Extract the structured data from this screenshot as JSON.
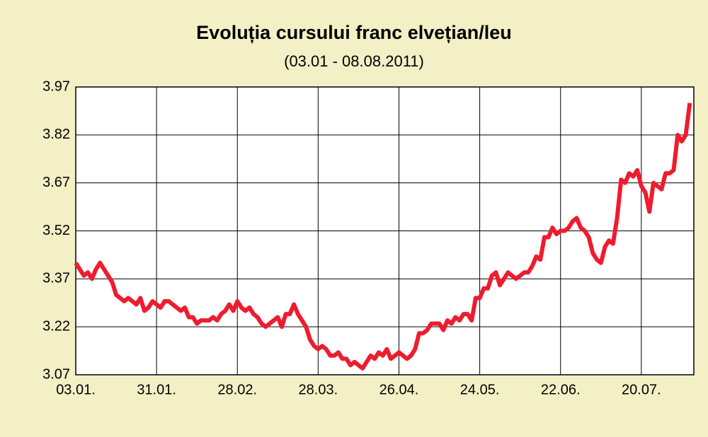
{
  "chart_data": {
    "type": "line",
    "title": "Evoluția cursului franc elvețian/leu",
    "subtitle": "(03.01 - 08.08.2011)",
    "categories": [
      "03.01.",
      null,
      null,
      null,
      null,
      null,
      null,
      null,
      null,
      null,
      null,
      null,
      null,
      null,
      null,
      null,
      null,
      null,
      null,
      null,
      "31.01.",
      null,
      null,
      null,
      null,
      null,
      null,
      null,
      null,
      null,
      null,
      null,
      null,
      null,
      null,
      null,
      null,
      null,
      null,
      null,
      "28.02.",
      null,
      null,
      null,
      null,
      null,
      null,
      null,
      null,
      null,
      null,
      null,
      null,
      null,
      null,
      null,
      null,
      null,
      null,
      null,
      "28.03.",
      null,
      null,
      null,
      null,
      null,
      null,
      null,
      null,
      null,
      null,
      null,
      null,
      null,
      null,
      null,
      null,
      null,
      null,
      null,
      "26.04.",
      null,
      null,
      null,
      null,
      null,
      null,
      null,
      null,
      null,
      null,
      null,
      null,
      null,
      null,
      null,
      null,
      null,
      null,
      null,
      "24.05.",
      null,
      null,
      null,
      null,
      null,
      null,
      null,
      null,
      null,
      null,
      null,
      null,
      null,
      null,
      null,
      null,
      null,
      null,
      null,
      "22.06.",
      null,
      null,
      null,
      null,
      null,
      null,
      null,
      null,
      null,
      null,
      null,
      null,
      null,
      null,
      null,
      null,
      null,
      null,
      null,
      "20.07.",
      null,
      null,
      null,
      null,
      null,
      null,
      null,
      null,
      null,
      null,
      null,
      null
    ],
    "series": [
      {
        "color": "#ee1c2e",
        "values": [
          3.42,
          3.4,
          3.38,
          3.39,
          3.37,
          3.4,
          3.42,
          3.4,
          3.38,
          3.36,
          3.32,
          3.31,
          3.3,
          3.31,
          3.3,
          3.29,
          3.31,
          3.27,
          3.28,
          3.3,
          3.29,
          3.28,
          3.3,
          3.3,
          3.29,
          3.28,
          3.27,
          3.28,
          3.25,
          3.25,
          3.23,
          3.24,
          3.24,
          3.24,
          3.25,
          3.24,
          3.26,
          3.27,
          3.29,
          3.27,
          3.3,
          3.28,
          3.27,
          3.28,
          3.26,
          3.25,
          3.23,
          3.22,
          3.23,
          3.24,
          3.25,
          3.22,
          3.26,
          3.26,
          3.29,
          3.26,
          3.24,
          3.22,
          3.18,
          3.16,
          3.15,
          3.16,
          3.15,
          3.13,
          3.13,
          3.14,
          3.12,
          3.12,
          3.1,
          3.11,
          3.1,
          3.09,
          3.11,
          3.13,
          3.12,
          3.14,
          3.13,
          3.15,
          3.12,
          3.13,
          3.14,
          3.13,
          3.12,
          3.13,
          3.15,
          3.2,
          3.2,
          3.21,
          3.23,
          3.23,
          3.23,
          3.21,
          3.24,
          3.23,
          3.25,
          3.24,
          3.26,
          3.26,
          3.24,
          3.31,
          3.31,
          3.34,
          3.34,
          3.38,
          3.39,
          3.35,
          3.37,
          3.39,
          3.38,
          3.37,
          3.38,
          3.39,
          3.39,
          3.41,
          3.44,
          3.43,
          3.5,
          3.5,
          3.53,
          3.51,
          3.52,
          3.52,
          3.53,
          3.55,
          3.56,
          3.53,
          3.52,
          3.5,
          3.45,
          3.43,
          3.42,
          3.47,
          3.49,
          3.48,
          3.56,
          3.68,
          3.67,
          3.7,
          3.69,
          3.71,
          3.66,
          3.64,
          3.58,
          3.67,
          3.66,
          3.65,
          3.7,
          3.7,
          3.71,
          3.82,
          3.8,
          3.82,
          3.92
        ]
      }
    ],
    "ylim": [
      3.07,
      3.97
    ],
    "yticks": [
      3.07,
      3.22,
      3.37,
      3.52,
      3.67,
      3.82,
      3.97
    ],
    "grid": true
  }
}
